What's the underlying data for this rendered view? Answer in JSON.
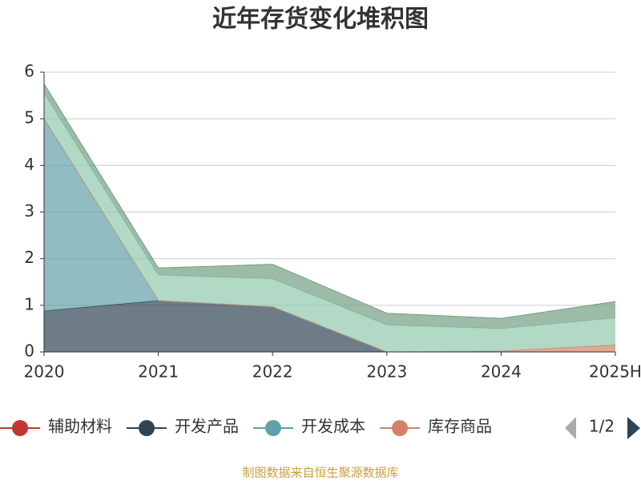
{
  "chart_data": {
    "type": "stacked-area",
    "title": "近年存货变化堆积图",
    "categories": [
      "2020",
      "2021",
      "2022",
      "2023",
      "2024",
      "2025H"
    ],
    "series": [
      {
        "name": "辅助材料",
        "color": "#c23531",
        "values": [
          0,
          0,
          0,
          0,
          0,
          0
        ]
      },
      {
        "name": "开发产品",
        "color": "#2f4554",
        "values": [
          0.88,
          1.1,
          0.97,
          0,
          0,
          0
        ]
      },
      {
        "name": "开发成本",
        "color": "#61a0a8",
        "values": [
          4.12,
          0,
          0,
          0,
          0,
          0
        ]
      },
      {
        "name": "库存商品",
        "color": "#d48265",
        "values": [
          0,
          0,
          0,
          0,
          0.02,
          0.15
        ]
      },
      {
        "color": "#91c7ae",
        "values": [
          0.55,
          0.55,
          0.6,
          0.58,
          0.48,
          0.58
        ]
      },
      {
        "color": "#749f83",
        "values": [
          0.2,
          0.15,
          0.31,
          0.25,
          0.22,
          0.35
        ]
      }
    ],
    "ylim": [
      0,
      6
    ],
    "yticks": [
      0,
      1,
      2,
      3,
      4,
      5,
      6
    ],
    "grid": true,
    "legend_page": "1/2",
    "source": "制图数据来自恒生聚源数据库"
  }
}
